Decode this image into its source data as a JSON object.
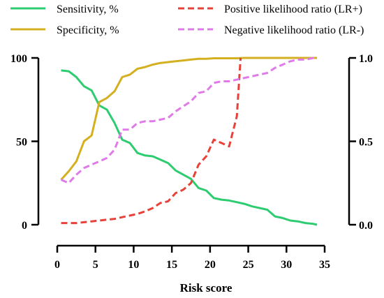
{
  "chart_data": {
    "type": "line",
    "xlabel": "Risk score",
    "x_ticks": [
      "0",
      "5",
      "10",
      "15",
      "20",
      "25",
      "30",
      "35"
    ],
    "xlim": [
      0,
      35
    ],
    "y_left_ticks": [
      "0",
      "50",
      "100"
    ],
    "ylim_left": [
      0,
      100
    ],
    "y_right_ticks": [
      "0.0",
      "0.5",
      "1.0"
    ],
    "ylim_right": [
      0,
      1
    ],
    "legend_position": "top",
    "series": [
      {
        "name": "Sensitivity, %",
        "color": "#2ecc71",
        "dash": "solid",
        "axis": "left",
        "x": [
          0.5,
          1.5,
          2.5,
          3.5,
          4.5,
          5.5,
          6.5,
          7.5,
          8.5,
          9.5,
          10.5,
          11.5,
          12.5,
          13.5,
          14.5,
          15.5,
          16.5,
          17.5,
          18.5,
          19.5,
          20.5,
          21.5,
          22.5,
          23.5,
          24.5,
          25.5,
          26.5,
          27.5,
          28.5,
          29.5,
          30.5,
          31.5,
          32.5,
          33.5,
          34.0
        ],
        "values": [
          92.5,
          92,
          88.5,
          83,
          80.5,
          71.5,
          69,
          61,
          51,
          49,
          43,
          41.5,
          41,
          39,
          37,
          32.5,
          30,
          27.5,
          22,
          20.5,
          16,
          15,
          14.5,
          13.5,
          12.5,
          11,
          10,
          9,
          5,
          4,
          2.5,
          2,
          1,
          0.5,
          0
        ]
      },
      {
        "name": "Specificity, %",
        "color": "#d4b021",
        "dash": "solid",
        "axis": "left",
        "x": [
          0.5,
          1.5,
          2.5,
          3.5,
          4.5,
          5.5,
          6.5,
          7.5,
          8.5,
          9.5,
          10.5,
          11.5,
          12.5,
          13.5,
          14.5,
          15.5,
          16.5,
          17.5,
          18.5,
          19.5,
          20.5,
          21.5,
          22.5,
          23.5,
          24.5,
          25.5,
          26.5,
          27.5,
          28.5,
          29.5,
          30.5,
          31.5,
          32.5,
          33.5,
          34.0
        ],
        "values": [
          27,
          32,
          38,
          50,
          53.5,
          73.5,
          76,
          80,
          88.5,
          90,
          93.5,
          94.5,
          96,
          97,
          97.5,
          98,
          98.5,
          99,
          99.5,
          99.5,
          99.8,
          99.8,
          99.8,
          99.8,
          100,
          100,
          100,
          100,
          100,
          100,
          100,
          100,
          100,
          100,
          100
        ]
      },
      {
        "name": "Positive likelihood ratio (LR+)",
        "color": "#e8413a",
        "dash": "dashed",
        "axis": "right",
        "x": [
          0.5,
          1.5,
          2.5,
          3.5,
          4.5,
          5.5,
          6.5,
          7.5,
          8.5,
          9.5,
          10.5,
          11.5,
          12.5,
          13.5,
          14.5,
          15.5,
          16.5,
          17.5,
          18.5,
          19.5,
          20.5,
          21.5,
          22.5,
          23.5,
          24.0
        ],
        "values": [
          0.01,
          0.01,
          0.01,
          0.015,
          0.02,
          0.025,
          0.03,
          0.035,
          0.045,
          0.055,
          0.065,
          0.08,
          0.1,
          0.13,
          0.14,
          0.19,
          0.21,
          0.25,
          0.36,
          0.41,
          0.51,
          0.49,
          0.47,
          0.65,
          1.0
        ]
      },
      {
        "name": "Negative likelihood ratio (LR-)",
        "color": "#e07ae8",
        "dash": "dashed",
        "axis": "right",
        "x": [
          0.5,
          1.5,
          2.5,
          3.5,
          4.5,
          5.5,
          6.5,
          7.5,
          8.5,
          9.5,
          10.5,
          11.5,
          12.5,
          13.5,
          14.5,
          15.5,
          16.5,
          17.5,
          18.5,
          19.5,
          20.5,
          21.5,
          22.5,
          23.5,
          24.5,
          25.5,
          26.5,
          27.5,
          28.5,
          29.5,
          30.5,
          31.5,
          32.5,
          33.5,
          34.0
        ],
        "values": [
          0.27,
          0.25,
          0.3,
          0.34,
          0.36,
          0.38,
          0.4,
          0.45,
          0.57,
          0.57,
          0.61,
          0.62,
          0.62,
          0.63,
          0.64,
          0.68,
          0.71,
          0.74,
          0.79,
          0.8,
          0.85,
          0.86,
          0.86,
          0.87,
          0.88,
          0.89,
          0.9,
          0.91,
          0.94,
          0.96,
          0.98,
          0.99,
          0.99,
          1.0,
          1.0
        ]
      }
    ]
  }
}
